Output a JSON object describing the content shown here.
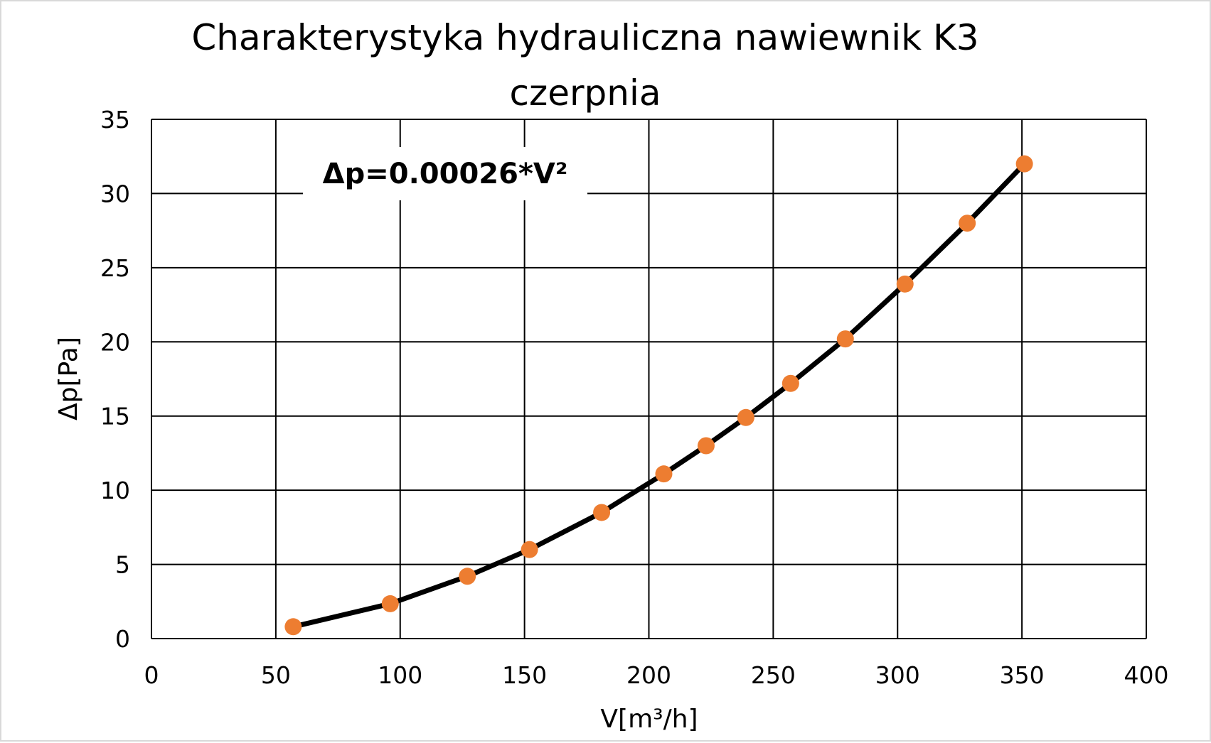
{
  "chart_data": {
    "type": "scatter",
    "title": "Charakterystyka hydrauliczna nawiewnik K3 czerpnia",
    "title_lines": [
      "Charakterystyka hydrauliczna nawiewnik K3",
      "czerpnia"
    ],
    "xlabel": "V[m³/h]",
    "ylabel": "Δp[Pa]",
    "xlim": [
      0,
      400
    ],
    "ylim": [
      0,
      35
    ],
    "x_ticks": [
      0,
      50,
      100,
      150,
      200,
      250,
      300,
      350,
      400
    ],
    "y_ticks": [
      0,
      5,
      10,
      15,
      20,
      25,
      30,
      35
    ],
    "x_tick_labels": [
      "0",
      "50",
      "100",
      "150",
      "200",
      "250",
      "300",
      "350",
      "400"
    ],
    "y_tick_labels": [
      "0",
      "5",
      "10",
      "15",
      "20",
      "25",
      "30",
      "35"
    ],
    "grid": true,
    "annotation": "Δp=0.00026*V²",
    "series": [
      {
        "type": "line",
        "color": "#000000",
        "x": [
          57,
          96,
          127,
          152,
          181,
          206,
          223,
          239,
          257,
          279,
          303,
          328,
          351
        ],
        "y": [
          0.8,
          2.35,
          4.2,
          6.0,
          8.5,
          11.1,
          13.0,
          14.9,
          17.2,
          20.2,
          23.9,
          28.0,
          32.0
        ]
      },
      {
        "type": "scatter",
        "color": "#ed7d31",
        "x": [
          57,
          96,
          127,
          152,
          181,
          206,
          223,
          239,
          257,
          279,
          303,
          328,
          351
        ],
        "y": [
          0.8,
          2.35,
          4.2,
          6.0,
          8.5,
          11.1,
          13.0,
          14.9,
          17.2,
          20.2,
          23.9,
          28.0,
          32.0
        ]
      }
    ]
  }
}
